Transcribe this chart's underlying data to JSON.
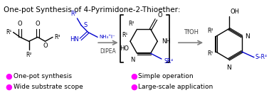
{
  "title": "One-pot Synthesis of 4-Pyrimidone-2-Thioether:",
  "title_fontsize": 7.5,
  "title_color": "#000000",
  "background_color": "#ffffff",
  "bullet_color": "#FF00FF",
  "bullet_fontsize": 6.5,
  "bullet_items_left": [
    "One-pot synthesis",
    "Wide substrate scope"
  ],
  "bullet_items_right": [
    "Simple operation",
    "Large-scale application"
  ],
  "reagent_color": "#0000CD",
  "black_color": "#000000",
  "figsize": [
    3.78,
    1.41
  ],
  "dpi": 100
}
